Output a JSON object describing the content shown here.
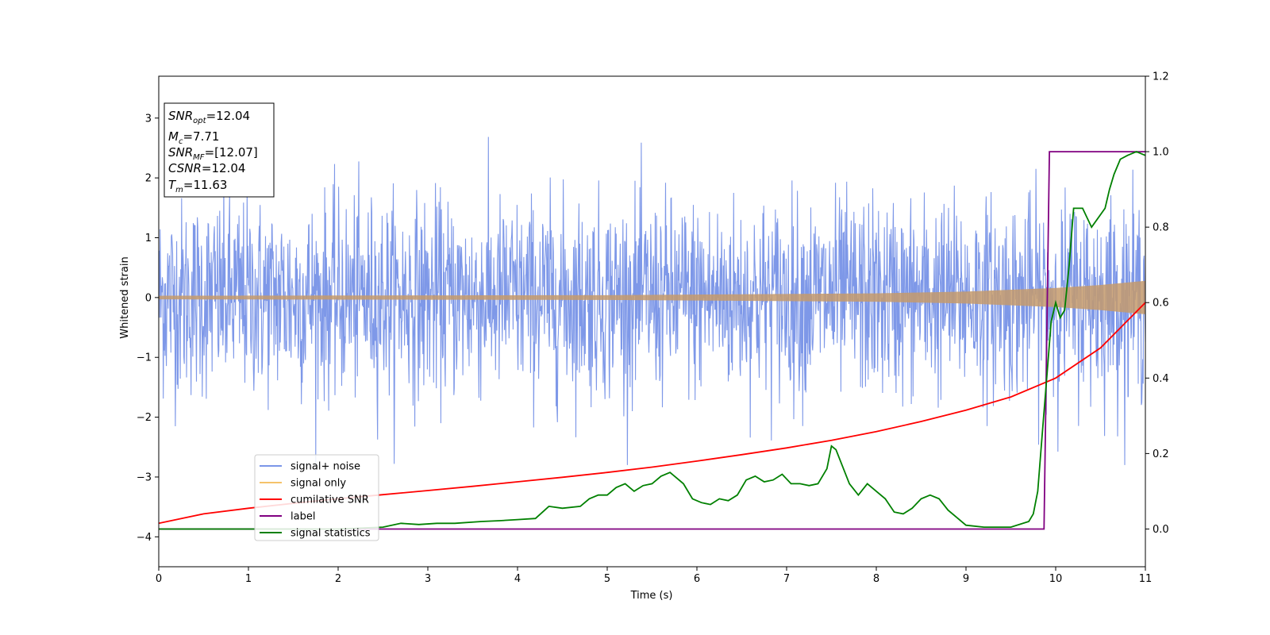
{
  "chart_data": {
    "type": "line",
    "xlabel": "Time (s)",
    "ylabel": "Whitened strain",
    "xlim": [
      0,
      11
    ],
    "ylim_left": [
      -4.5,
      3.7
    ],
    "ylim_right": [
      -0.1,
      1.2
    ],
    "x_ticks": [
      "0",
      "1",
      "2",
      "3",
      "4",
      "5",
      "6",
      "7",
      "8",
      "9",
      "10",
      "11"
    ],
    "y_ticks_left": [
      "−4",
      "−3",
      "−2",
      "−1",
      "0",
      "1",
      "2",
      "3"
    ],
    "y_ticks_right": [
      "0.0",
      "0.2",
      "0.4",
      "0.6",
      "0.8",
      "1.0",
      "1.2"
    ],
    "annotations": {
      "snr_opt": {
        "name": "SNR",
        "sub": "opt",
        "value": "=12.04"
      },
      "mc": {
        "name": "M",
        "sub": "c",
        "value": "=7.71"
      },
      "snr_mf": {
        "name": "SNR",
        "sub": "MF",
        "value": "=[12.07]"
      },
      "csnr": {
        "name": "CSNR",
        "sub": "",
        "value": "=12.04"
      },
      "tm": {
        "name": "T",
        "sub": "m",
        "value": "=11.63"
      }
    },
    "legend_position": "lower-left",
    "series": [
      {
        "name": "signal+ noise",
        "color": "#7b96e8",
        "axis": "left",
        "description_only_envelope": [
          -2.8,
          3.3
        ]
      },
      {
        "name": "signal only",
        "color": "#f5c36b",
        "axis": "left",
        "envelope": {
          "x": [
            0,
            5,
            8,
            9,
            10,
            10.5,
            11
          ],
          "amplitude": [
            0.03,
            0.04,
            0.07,
            0.1,
            0.16,
            0.21,
            0.28
          ]
        }
      },
      {
        "name": "cumilative SNR",
        "color": "#ff0000",
        "axis": "right",
        "x": [
          0,
          0.5,
          1,
          1.5,
          2,
          2.5,
          3,
          3.5,
          4,
          4.5,
          5,
          5.5,
          6,
          6.5,
          7,
          7.5,
          8,
          8.5,
          9,
          9.5,
          10,
          10.5,
          11
        ],
        "y": [
          0.015,
          0.04,
          0.055,
          0.068,
          0.08,
          0.091,
          0.102,
          0.113,
          0.125,
          0.137,
          0.15,
          0.164,
          0.18,
          0.197,
          0.215,
          0.235,
          0.258,
          0.285,
          0.315,
          0.35,
          0.4,
          0.48,
          0.6
        ]
      },
      {
        "name": "label",
        "color": "#800080",
        "axis": "right",
        "x": [
          0,
          9.87,
          9.93,
          11
        ],
        "y": [
          0,
          0,
          1,
          1
        ]
      },
      {
        "name": "signal statistics",
        "color": "#008000",
        "axis": "right",
        "x": [
          0,
          0.5,
          1,
          1.5,
          2,
          2.5,
          2.7,
          2.9,
          3.1,
          3.3,
          3.6,
          3.8,
          4.0,
          4.2,
          4.35,
          4.5,
          4.7,
          4.8,
          4.9,
          5.0,
          5.1,
          5.2,
          5.3,
          5.4,
          5.5,
          5.6,
          5.7,
          5.75,
          5.85,
          5.95,
          6.05,
          6.15,
          6.25,
          6.35,
          6.45,
          6.55,
          6.65,
          6.75,
          6.85,
          6.95,
          7.05,
          7.15,
          7.25,
          7.35,
          7.45,
          7.5,
          7.55,
          7.7,
          7.8,
          7.9,
          8.0,
          8.1,
          8.2,
          8.3,
          8.4,
          8.5,
          8.6,
          8.7,
          8.8,
          8.9,
          9.0,
          9.2,
          9.5,
          9.7,
          9.75,
          9.8,
          9.85,
          9.9,
          9.95,
          10.0,
          10.05,
          10.1,
          10.15,
          10.2,
          10.3,
          10.4,
          10.55,
          10.6,
          10.65,
          10.72,
          10.8,
          10.9,
          11.0
        ],
        "y": [
          0,
          0,
          0,
          0,
          0,
          0.005,
          0.015,
          0.012,
          0.015,
          0.015,
          0.02,
          0.022,
          0.025,
          0.028,
          0.06,
          0.055,
          0.06,
          0.08,
          0.09,
          0.09,
          0.11,
          0.12,
          0.1,
          0.115,
          0.12,
          0.14,
          0.15,
          0.14,
          0.12,
          0.08,
          0.07,
          0.065,
          0.08,
          0.075,
          0.09,
          0.13,
          0.14,
          0.125,
          0.13,
          0.145,
          0.12,
          0.12,
          0.115,
          0.12,
          0.16,
          0.22,
          0.21,
          0.12,
          0.09,
          0.12,
          0.1,
          0.08,
          0.045,
          0.04,
          0.055,
          0.08,
          0.09,
          0.08,
          0.05,
          0.03,
          0.01,
          0.005,
          0.005,
          0.02,
          0.04,
          0.1,
          0.25,
          0.4,
          0.55,
          0.6,
          0.56,
          0.58,
          0.7,
          0.85,
          0.85,
          0.8,
          0.85,
          0.9,
          0.94,
          0.98,
          0.99,
          1.0,
          0.99
        ]
      }
    ]
  }
}
